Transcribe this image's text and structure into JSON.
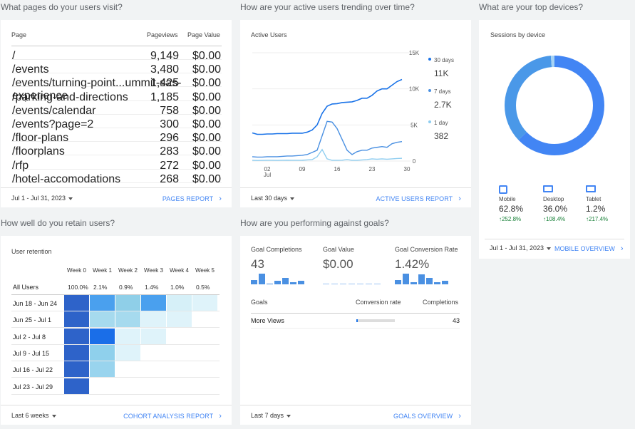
{
  "questions": {
    "pages": "What pages do your users visit?",
    "trend": "How are your active users trending over time?",
    "devices": "What are your top devices?",
    "retention": "How well do you retain users?",
    "goals": "How are you performing against goals?"
  },
  "pages_card": {
    "headers": [
      "Page",
      "Pageviews",
      "Page Value"
    ],
    "rows": [
      {
        "page": "/",
        "views": "9,149",
        "value": "$0.00"
      },
      {
        "page": "/events",
        "views": "3,480",
        "value": "$0.00"
      },
      {
        "page": "/events/turning-point...ummit-sas-experience",
        "views": "1,425",
        "value": "$0.00"
      },
      {
        "page": "/parking-and-directions",
        "views": "1,185",
        "value": "$0.00"
      },
      {
        "page": "/events/calendar",
        "views": "758",
        "value": "$0.00"
      },
      {
        "page": "/events?page=2",
        "views": "300",
        "value": "$0.00"
      },
      {
        "page": "/floor-plans",
        "views": "296",
        "value": "$0.00"
      },
      {
        "page": "/floorplans",
        "views": "283",
        "value": "$0.00"
      },
      {
        "page": "/rfp",
        "views": "272",
        "value": "$0.00"
      },
      {
        "page": "/hotel-accomodations",
        "views": "268",
        "value": "$0.00"
      }
    ],
    "range": "Jul 1 - Jul 31, 2023",
    "link": "PAGES REPORT"
  },
  "active_card": {
    "title": "Active Users",
    "y_ticks": [
      "15K",
      "10K",
      "5K",
      "0"
    ],
    "x_ticks": [
      "02",
      "09",
      "16",
      "23",
      "30"
    ],
    "x_sub": "Jul",
    "legend": [
      {
        "label": "30 days",
        "value": "11K",
        "color": "#1a73e8"
      },
      {
        "label": "7 days",
        "value": "2.7K",
        "color": "#4a90e2"
      },
      {
        "label": "1 day",
        "value": "382",
        "color": "#8ecdf0"
      }
    ],
    "range": "Last 30 days",
    "link": "ACTIVE USERS REPORT"
  },
  "chart_data": {
    "type": "line",
    "title": "Active Users",
    "x": [
      1,
      2,
      3,
      4,
      5,
      6,
      7,
      8,
      9,
      10,
      11,
      12,
      13,
      14,
      15,
      16,
      17,
      18,
      19,
      20,
      21,
      22,
      23,
      24,
      25,
      26,
      27,
      28,
      29,
      30,
      31
    ],
    "ylim": [
      0,
      15000
    ],
    "series": [
      {
        "name": "30 days",
        "values": [
          3900,
          3700,
          3700,
          3750,
          3750,
          3800,
          3800,
          3800,
          3850,
          3850,
          3850,
          4000,
          4300,
          5000,
          6600,
          7600,
          7900,
          7950,
          8100,
          8150,
          8200,
          8400,
          8700,
          8700,
          9100,
          9700,
          10000,
          10000,
          10500,
          11000,
          11300
        ]
      },
      {
        "name": "7 days",
        "values": [
          600,
          550,
          550,
          600,
          600,
          600,
          650,
          700,
          700,
          750,
          800,
          900,
          1200,
          1500,
          3500,
          5500,
          5400,
          4500,
          3000,
          1500,
          900,
          1300,
          1500,
          1500,
          1800,
          1900,
          2000,
          1900,
          2400,
          2600,
          2700
        ]
      },
      {
        "name": "1 day",
        "values": [
          100,
          80,
          90,
          100,
          100,
          90,
          100,
          120,
          100,
          100,
          110,
          150,
          200,
          600,
          1600,
          300,
          100,
          100,
          120,
          200,
          100,
          100,
          150,
          200,
          300,
          250,
          300,
          250,
          300,
          350,
          382
        ]
      }
    ]
  },
  "devices_card": {
    "title": "Sessions by device",
    "devices": [
      {
        "name": "Mobile",
        "share": "62.8%",
        "change": "↑252.8%",
        "pct": 62.8,
        "color": "#4285f4"
      },
      {
        "name": "Desktop",
        "share": "36.0%",
        "change": "↑108.4%",
        "pct": 36.0,
        "color": "#4a98e8"
      },
      {
        "name": "Tablet",
        "share": "1.2%",
        "change": "↑217.4%",
        "pct": 1.2,
        "color": "#a6d3f5"
      }
    ],
    "range": "Jul 1 - Jul 31, 2023",
    "link": "MOBILE OVERVIEW"
  },
  "retention_card": {
    "title": "User retention",
    "weeks": [
      "Week 0",
      "Week 1",
      "Week 2",
      "Week 3",
      "Week 4",
      "Week 5"
    ],
    "all_label": "All Users",
    "all_values": [
      "100.0%",
      "2.1%",
      "0.9%",
      "1.4%",
      "1.0%",
      "0.5%"
    ],
    "cohorts": [
      "Jun 18 - Jun 24",
      "Jun 25 - Jul 1",
      "Jul 2 - Jul 8",
      "Jul 9 - Jul 15",
      "Jul 16 - Jul 22",
      "Jul 23 - Jul 29"
    ],
    "range": "Last 6 weeks",
    "link": "COHORT ANALYSIS REPORT"
  },
  "goals_card": {
    "metrics": [
      {
        "label": "Goal Completions",
        "value": "43"
      },
      {
        "label": "Goal Value",
        "value": "$0.00"
      },
      {
        "label": "Goal Conversion Rate",
        "value": "1.42%"
      }
    ],
    "headers": [
      "Goals",
      "Conversion rate",
      "Completions"
    ],
    "rows": [
      {
        "goal": "More Views",
        "completions": "43"
      }
    ],
    "range": "Last 7 days",
    "link": "GOALS OVERVIEW"
  }
}
